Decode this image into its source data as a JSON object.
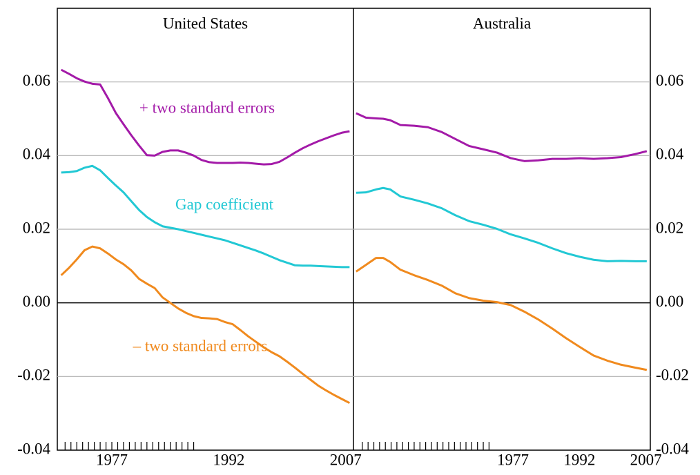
{
  "chart_data": [
    {
      "type": "line",
      "title": "United States",
      "xlim": [
        1970,
        2008
      ],
      "xticks": [
        1977,
        1992,
        2007
      ],
      "minor_xticks": [
        1971,
        1971.75,
        1972.5,
        1973.25,
        1974,
        1974.75,
        1975.5,
        1976.25,
        1977,
        1977.75,
        1978.5,
        1979.25,
        1980,
        1980.75,
        1981.5,
        1982.25,
        1983,
        1983.75,
        1984.5,
        1985.25,
        1986,
        1986.75,
        1987.5
      ],
      "ylim": [
        -0.04,
        0.08
      ],
      "yticks": [
        {
          "value": -0.04,
          "label": "-0.04"
        },
        {
          "value": -0.02,
          "label": "-0.02"
        },
        {
          "value": 0,
          "label": "0.00"
        },
        {
          "value": 0.02,
          "label": "0.02"
        },
        {
          "value": 0.04,
          "label": "0.04"
        },
        {
          "value": 0.06,
          "label": "0.06"
        }
      ],
      "grid": true,
      "y_axis_side": "left",
      "x": [
        1970.5,
        1971.5,
        1972.5,
        1973.5,
        1974.5,
        1975.5,
        1976.5,
        1977.5,
        1978.5,
        1979.5,
        1980.5,
        1981.5,
        1982.5,
        1983.5,
        1984.5,
        1985.5,
        1986.5,
        1987.5,
        1988.5,
        1989.5,
        1990.5,
        1991.5,
        1992.5,
        1993.5,
        1994.5,
        1995.5,
        1996.5,
        1997.5,
        1998.5,
        1999.5,
        2000.5,
        2001.5,
        2002.5,
        2003.5,
        2004.5,
        2005.5,
        2006.5,
        2007.5
      ],
      "series": [
        {
          "name": "+ two standard errors",
          "color": "#a31aa8",
          "values": [
            0.0633,
            0.0622,
            0.061,
            0.0601,
            0.0595,
            0.0593,
            0.0556,
            0.0516,
            0.0485,
            0.0455,
            0.0427,
            0.0401,
            0.04,
            0.041,
            0.0414,
            0.0414,
            0.0408,
            0.04,
            0.0388,
            0.0382,
            0.038,
            0.038,
            0.038,
            0.0381,
            0.038,
            0.0378,
            0.0376,
            0.0377,
            0.0383,
            0.0395,
            0.0408,
            0.042,
            0.043,
            0.0439,
            0.0447,
            0.0455,
            0.0462,
            0.0466
          ]
        },
        {
          "name": "Gap coefficient",
          "color": "#22c8d4",
          "values": [
            0.0354,
            0.0355,
            0.0358,
            0.0367,
            0.0372,
            0.036,
            0.0339,
            0.0319,
            0.03,
            0.0276,
            0.0252,
            0.0233,
            0.0219,
            0.0208,
            0.0204,
            0.02,
            0.0195,
            0.019,
            0.0185,
            0.018,
            0.0175,
            0.017,
            0.0163,
            0.0156,
            0.0149,
            0.0142,
            0.0134,
            0.0125,
            0.0116,
            0.0109,
            0.0102,
            0.0101,
            0.0101,
            0.01,
            0.0099,
            0.0098,
            0.0097,
            0.0097
          ]
        },
        {
          "name": "– two standard errors",
          "color": "#f08a1e",
          "values": [
            0.0075,
            0.0095,
            0.0118,
            0.0143,
            0.0153,
            0.0148,
            0.0134,
            0.0118,
            0.0105,
            0.0088,
            0.0065,
            0.0052,
            0.004,
            0.0015,
            0,
            -0.0015,
            -0.0027,
            -0.0036,
            -0.0041,
            -0.0042,
            -0.0044,
            -0.0052,
            -0.0058,
            -0.0074,
            -0.0091,
            -0.0106,
            -0.0121,
            -0.0134,
            -0.0145,
            -0.016,
            -0.0176,
            -0.0193,
            -0.0209,
            -0.0225,
            -0.0238,
            -0.025,
            -0.0261,
            -0.0272
          ]
        }
      ]
    },
    {
      "type": "line",
      "title": "Australia",
      "xlim": [
        1941,
        2008
      ],
      "xticks": [
        1977,
        1992,
        2007
      ],
      "minor_xticks": [
        1943,
        1944.3,
        1945.6,
        1946.9,
        1948.2,
        1949.5,
        1950.8,
        1952.1,
        1953.4,
        1954.7,
        1956,
        1957.3,
        1958.6,
        1959.9,
        1961.2,
        1962.5,
        1963.8,
        1965.1,
        1966.4,
        1967.7,
        1969,
        1970.3,
        1971.6
      ],
      "ylim": [
        -0.04,
        0.08
      ],
      "yticks": [
        {
          "value": -0.04,
          "label": "-0.04"
        },
        {
          "value": -0.02,
          "label": "-0.02"
        },
        {
          "value": 0,
          "label": "0.00"
        },
        {
          "value": 0.02,
          "label": "0.02"
        },
        {
          "value": 0.04,
          "label": "0.04"
        },
        {
          "value": 0.06,
          "label": "0.06"
        }
      ],
      "grid": true,
      "y_axis_side": "right",
      "x": [
        1941.6,
        1943.8,
        1946.1,
        1947.7,
        1949.3,
        1951.6,
        1954.7,
        1957.8,
        1960.9,
        1964.0,
        1967.1,
        1970.3,
        1973.4,
        1976.5,
        1979.6,
        1982.7,
        1985.9,
        1989.0,
        1992.1,
        1995.2,
        1998.3,
        2001.4,
        2004.6,
        2007.2
      ],
      "series": [
        {
          "color": "#a31aa8",
          "values": [
            0.0515,
            0.0503,
            0.0501,
            0.05,
            0.0496,
            0.0483,
            0.0481,
            0.0477,
            0.0464,
            0.0445,
            0.0426,
            0.0417,
            0.0408,
            0.0393,
            0.0385,
            0.0387,
            0.0391,
            0.0391,
            0.0393,
            0.0391,
            0.0393,
            0.0396,
            0.0404,
            0.0412
          ]
        },
        {
          "color": "#22c8d4",
          "values": [
            0.0299,
            0.03,
            0.0308,
            0.0312,
            0.0308,
            0.0289,
            0.028,
            0.027,
            0.0257,
            0.0238,
            0.0222,
            0.0212,
            0.0201,
            0.0186,
            0.0175,
            0.0163,
            0.0148,
            0.0135,
            0.0125,
            0.0117,
            0.0113,
            0.0114,
            0.0113,
            0.0113
          ]
        },
        {
          "color": "#f08a1e",
          "values": [
            0.0085,
            0.0103,
            0.0122,
            0.0122,
            0.0111,
            0.009,
            0.0075,
            0.0062,
            0.0047,
            0.0026,
            0.0013,
            0.0006,
            0.0002,
            -0.0006,
            -0.0024,
            -0.0045,
            -0.007,
            -0.0096,
            -0.012,
            -0.0143,
            -0.0157,
            -0.0168,
            -0.0176,
            -0.0182
          ]
        }
      ]
    }
  ]
}
